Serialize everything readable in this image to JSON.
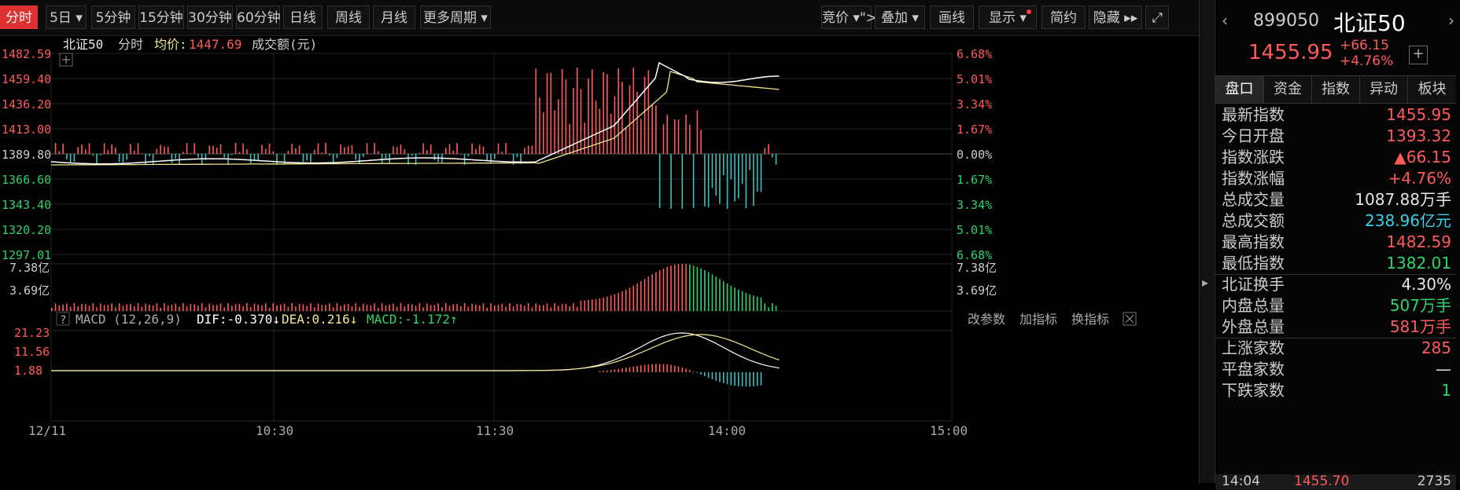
{
  "toolbar": {
    "period_buttons": [
      "分时",
      "5日",
      "5分钟",
      "15分钟",
      "30分钟",
      "60分钟",
      "日线",
      "周线",
      "月线",
      "更多周期"
    ],
    "tool_buttons": [
      "竞价",
      "叠加",
      "画线",
      "显示",
      "简约",
      "隐藏"
    ]
  },
  "header": {
    "name": "北证50",
    "mode": "分时",
    "avg_label": "均价:",
    "avg_value": "1447.69",
    "volume_label": "成交额(元)"
  },
  "price_axis": {
    "left": [
      "1482.59",
      "1459.40",
      "1436.20",
      "1413.00",
      "1389.80",
      "1366.60",
      "1343.40",
      "1320.20",
      "1297.01"
    ],
    "right": [
      "6.68%",
      "5.01%",
      "3.34%",
      "1.67%",
      "0.00%",
      "1.67%",
      "3.34%",
      "5.01%",
      "6.68%"
    ]
  },
  "volume_axis": {
    "left": [
      "7.38亿",
      "3.69亿"
    ],
    "right": [
      "7.38亿",
      "3.69亿"
    ]
  },
  "macd": {
    "help": "?",
    "title": "MACD (12,26,9)",
    "dif": "DIF:-0.370↓",
    "dea": "DEA:0.216↓",
    "macd": "MACD:-1.172↑",
    "actions": [
      "改参数",
      "加指标",
      "换指标"
    ],
    "axis": [
      "21.23",
      "11.56",
      "1.88"
    ]
  },
  "time_axis": [
    "12/11",
    "10:30",
    "11:30",
    "14:00",
    "15:00"
  ],
  "panel": {
    "code": "899050",
    "name": "北证50",
    "price": "1455.95",
    "change": "+66.15",
    "change_pct": "+4.76%",
    "tabs": [
      "盘口",
      "资金",
      "指数",
      "异动",
      "板块"
    ],
    "rows": [
      {
        "k": "最新指数",
        "v": "1455.95",
        "c": "red"
      },
      {
        "k": "今日开盘",
        "v": "1393.32",
        "c": "red"
      },
      {
        "k": "指数涨跌",
        "v": "▲66.15",
        "c": "red"
      },
      {
        "k": "指数涨幅",
        "v": "+4.76%",
        "c": "red"
      },
      {
        "k": "总成交量",
        "v": "1087.88万手",
        "c": "white"
      },
      {
        "k": "总成交额",
        "v": "238.96亿元",
        "c": "cyan"
      },
      {
        "k": "最高指数",
        "v": "1482.59",
        "c": "red"
      },
      {
        "k": "最低指数",
        "v": "1382.01",
        "c": "green"
      },
      {
        "k": "北证换手",
        "v": "4.30%",
        "c": "white"
      },
      {
        "k": "内盘总量",
        "v": "507万手",
        "c": "green"
      },
      {
        "k": "外盘总量",
        "v": "581万手",
        "c": "red"
      },
      {
        "k": "上涨家数",
        "v": "285",
        "c": "red"
      },
      {
        "k": "平盘家数",
        "v": "—",
        "c": "white"
      },
      {
        "k": "下跌家数",
        "v": "1",
        "c": "green"
      }
    ],
    "footer": {
      "time": "14:04",
      "price": "1455.70",
      "vol": "2735"
    }
  },
  "colors": {
    "up": "#ff5a5a",
    "down": "#2ed36b",
    "price_line": "#ffffff",
    "avg_line": "#f0e68c",
    "bg": "#000000"
  }
}
